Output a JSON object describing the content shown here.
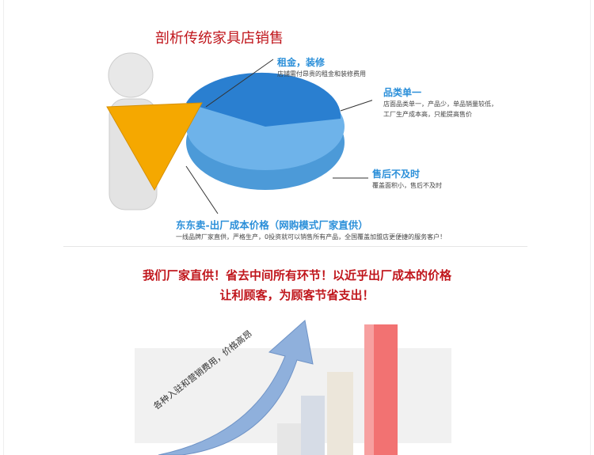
{
  "title": "剖析传统家具店销售",
  "callouts": [
    {
      "heading": "租金，装修",
      "text": "店铺需付昂贵的租金和装修费用"
    },
    {
      "heading": "品类单一",
      "text": "店面品类单一，产品少，单品销量较低，",
      "text2": "工厂生产成本高，只能提高售价"
    },
    {
      "heading": "售后不及时",
      "text": "覆盖面积小，售后不及时"
    },
    {
      "heading": "东东卖-出厂成本价格（网购模式厂家直供）",
      "text": "一线品牌厂家直供，严格生产，0投资就可以销售所有产品，全国覆盖加盟店更便捷的服务客户！"
    }
  ],
  "slogan": {
    "line1": "我们厂家直供！省去中间所有环节！以近乎出厂成本的价格",
    "line2": "让利顾客，为顾客节省支出！"
  },
  "arrow_text": "各种入驻和营销费用，价格高昂",
  "colors": {
    "accent_red": "#c0161c",
    "accent_blue": "#2b8fd9",
    "pie_orange": "#f5a800"
  }
}
